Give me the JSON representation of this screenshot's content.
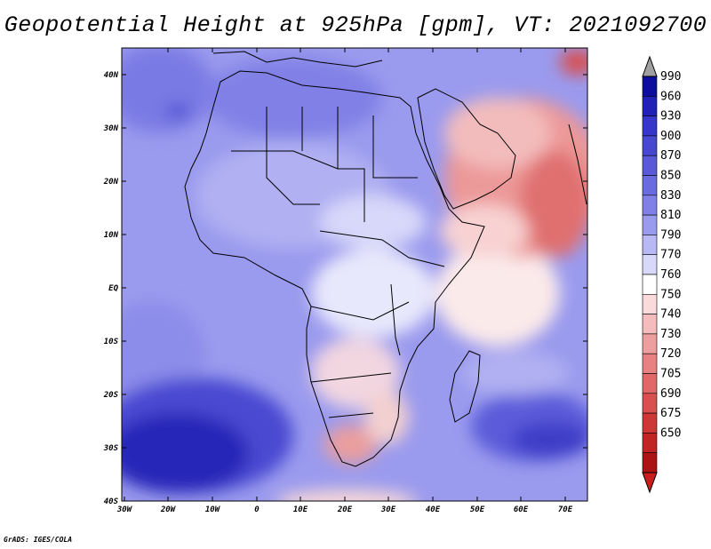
{
  "title": "Geopotential Height at 925hPa [gpm], VT: 2021092700",
  "credit": "GrADS: IGES/COLA",
  "map": {
    "variable": "Geopotential Height",
    "level": "925hPa",
    "units": "gpm",
    "valid_time": "2021092700",
    "lat_ticks": [
      "40N",
      "30N",
      "20N",
      "10N",
      "EQ",
      "10S",
      "20S",
      "30S",
      "40S"
    ],
    "lon_ticks": [
      "30W",
      "20W",
      "10W",
      "0",
      "10E",
      "20E",
      "30E",
      "40E",
      "50E",
      "60E",
      "70E"
    ]
  },
  "colorbar": {
    "levels": [
      "990",
      "960",
      "930",
      "900",
      "870",
      "850",
      "830",
      "810",
      "790",
      "770",
      "760",
      "750",
      "740",
      "730",
      "720",
      "705",
      "690",
      "675",
      "650"
    ],
    "colors": [
      "#0e0e9c",
      "#2121b5",
      "#3636c8",
      "#4747d0",
      "#5a5ad8",
      "#6b6be0",
      "#8080e6",
      "#9a9aee",
      "#b8b8f4",
      "#d8d8fa",
      "#ffffff",
      "#fadada",
      "#f4bcbc",
      "#ee9e9e",
      "#e88282",
      "#e06868",
      "#d85050",
      "#cc3838",
      "#c02424",
      "#aa1414"
    ],
    "top_arrow_color": "#a0a0a0",
    "bottom_arrow_color": "#c81e1e"
  }
}
